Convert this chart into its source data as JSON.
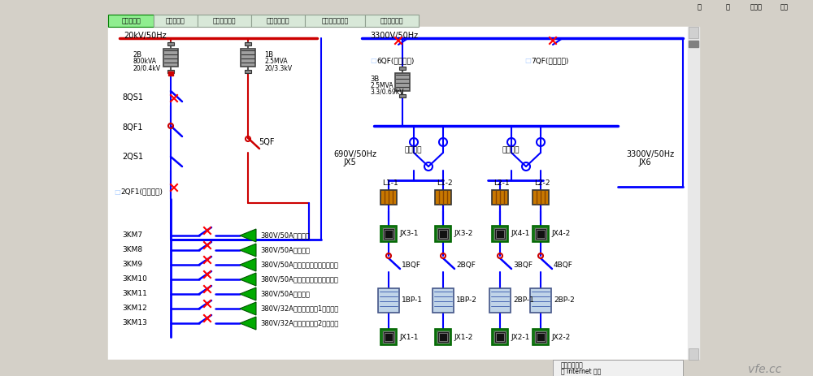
{
  "bg_color": "#d4d0c8",
  "diagram_bg": "#ffffff",
  "tab_items": [
    "线路图控制",
    "变流器控制",
    "水冷系统控制",
    "风冷电机控制",
    "功率分析仿界面",
    "数据采集管理"
  ],
  "top_menu": [
    "米",
    "离",
    "最小化",
    "退出"
  ],
  "bus_blue": "#0000ff",
  "bus_red": "#cc0000",
  "green_arrow": "#00aa00",
  "km_labels": [
    "3KM7",
    "3KM8",
    "3KM9",
    "3KM10",
    "3KM11",
    "3KM12",
    "3KM13"
  ],
  "km_descs": [
    "380V/50A备用电源",
    "380V/50A备用电源",
    "380V/50A拖动调速控制柜供电电源",
    "380V/50A被试调速控制柜供电电源",
    "380V/50A备用电源",
    "380V/32A发电机内冷却1供电电源",
    "380V/32A发电机内冷却2供电电源"
  ]
}
